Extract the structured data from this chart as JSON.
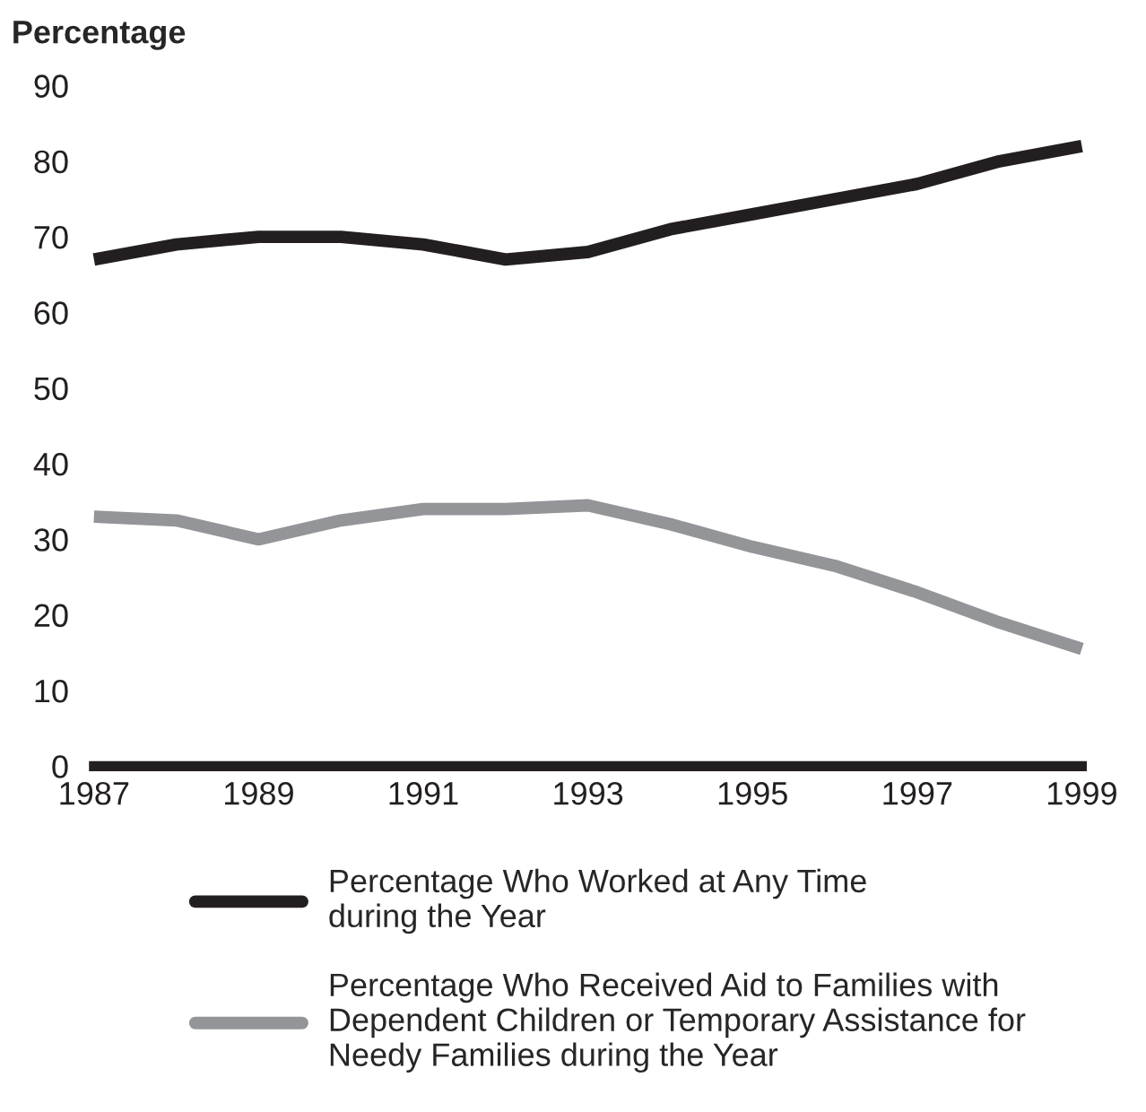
{
  "chart_data": {
    "type": "line",
    "ylabel": "Percentage",
    "x": [
      1987,
      1988,
      1989,
      1990,
      1991,
      1992,
      1993,
      1994,
      1995,
      1996,
      1997,
      1998,
      1999
    ],
    "series": [
      {
        "name": "Percentage Who Worked at Any Time\nduring the Year",
        "color": "#231f20",
        "values": [
          67,
          69,
          70,
          70,
          69,
          67,
          68,
          71,
          73,
          75,
          77,
          80,
          82
        ]
      },
      {
        "name": "Percentage Who Received Aid to Families with\nDependent Children or Temporary Assistance for\nNeedy Families during the Year",
        "color": "#939598",
        "values": [
          33,
          32.5,
          30,
          32.5,
          34,
          34,
          34.5,
          32,
          29,
          26.5,
          23,
          19,
          15.5
        ]
      }
    ],
    "xlim": [
      1987,
      1999
    ],
    "xticks": [
      1987,
      1989,
      1991,
      1993,
      1995,
      1997,
      1999
    ],
    "ylim": [
      0,
      90
    ],
    "yticks": [
      0,
      10,
      20,
      30,
      40,
      50,
      60,
      70,
      80,
      90
    ],
    "grid": false,
    "legend": "bottom",
    "marker": "none",
    "line_style": "solid"
  }
}
